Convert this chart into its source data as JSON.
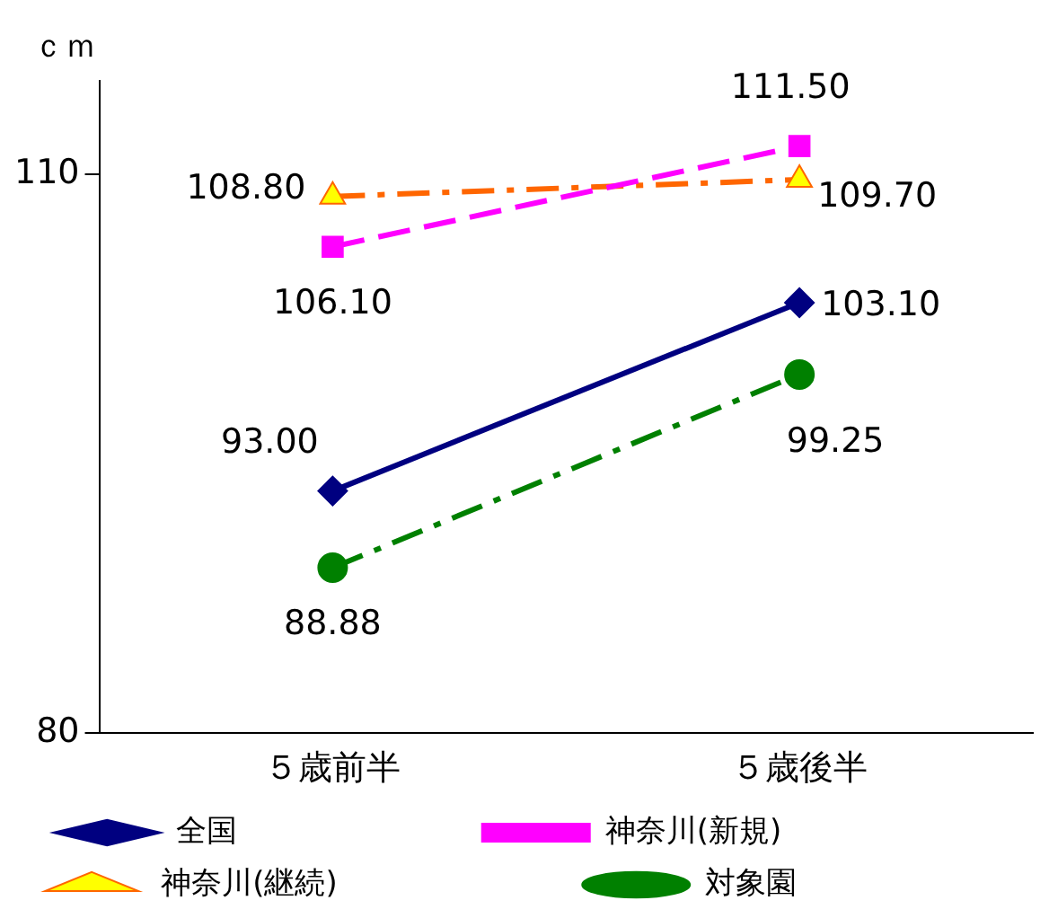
{
  "chart_data": {
    "type": "line",
    "ylabel": "ｃｍ",
    "categories": [
      "５歳前半",
      "５歳後半"
    ],
    "ylim": [
      80,
      115
    ],
    "yticks": [
      80,
      110
    ],
    "grid": false,
    "legend": "bottom",
    "series": [
      {
        "name": "全国",
        "color": "#000080",
        "values": [
          93.0,
          103.1
        ],
        "value_labels": [
          "93.00",
          "103.10"
        ],
        "marker": "diamond",
        "line_style": "solid"
      },
      {
        "name": "神奈川(新規)",
        "color": "#ff00ff",
        "values": [
          106.1,
          111.5
        ],
        "value_labels": [
          "106.10",
          "111.50"
        ],
        "marker": "square",
        "line_style": "dashed"
      },
      {
        "name": "神奈川(継続)",
        "color": "#ff6600",
        "values": [
          108.8,
          109.7
        ],
        "value_labels": [
          "108.80",
          "109.70"
        ],
        "marker": "triangle",
        "line_style": "dashdot"
      },
      {
        "name": "対象園",
        "color": "#008000",
        "values": [
          88.88,
          99.25
        ],
        "value_labels": [
          "88.88",
          "99.25"
        ],
        "marker": "circle",
        "line_style": "dashdot"
      }
    ]
  }
}
